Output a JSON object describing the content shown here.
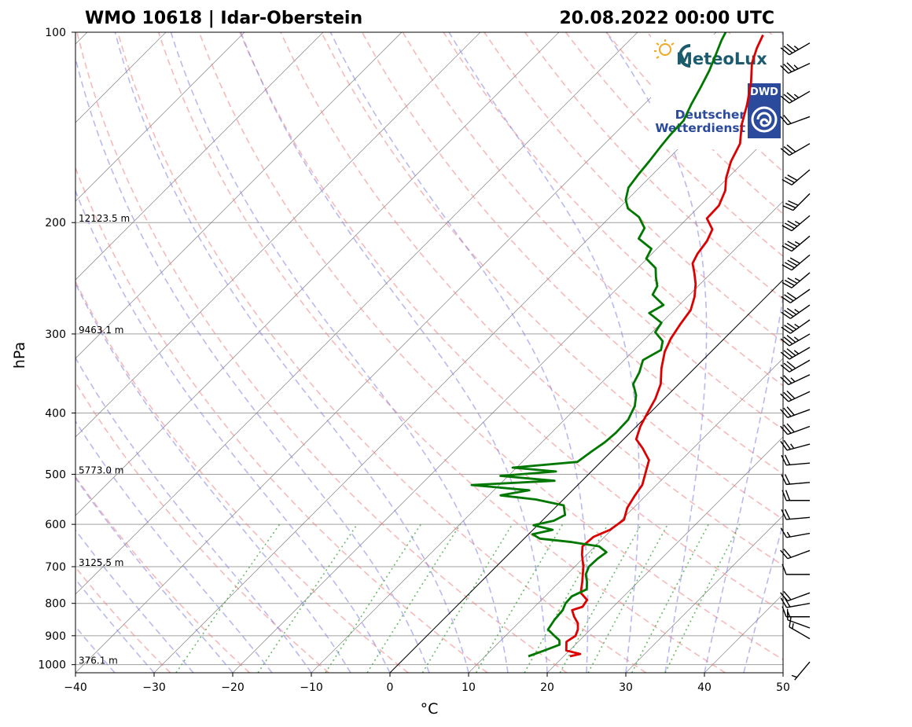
{
  "chart_data": {
    "type": "line",
    "diagram": "skew-T log-p",
    "title_left": "WMO 10618 | Idar-Oberstein",
    "title_right": "20.08.2022 00:00 UTC",
    "xlabel": "°C",
    "ylabel": "hPa",
    "xlim": [
      -40,
      50
    ],
    "ylim": [
      1030,
      100
    ],
    "x_ticks": [
      "−40",
      "−30",
      "−20",
      "−10",
      "0",
      "10",
      "20",
      "30",
      "40",
      "50"
    ],
    "x_tick_values": [
      -40,
      -30,
      -20,
      -10,
      0,
      10,
      20,
      30,
      40,
      50
    ],
    "y_ticks": [
      "100",
      "200",
      "300",
      "400",
      "500",
      "600",
      "700",
      "800",
      "900",
      "1000"
    ],
    "y_tick_values": [
      100,
      200,
      300,
      400,
      500,
      600,
      700,
      800,
      900,
      1000
    ],
    "height_labels": [
      {
        "p": 200,
        "text": "12123.5 m"
      },
      {
        "p": 300,
        "text": "9463.1 m"
      },
      {
        "p": 500,
        "text": "5773.0 m"
      },
      {
        "p": 700,
        "text": "3125.5 m"
      },
      {
        "p": 1000,
        "text": "376.1 m"
      }
    ],
    "grid": true,
    "series": [
      {
        "role": "temperature",
        "color": "#dd0000",
        "points": [
          [
            970,
            20.8
          ],
          [
            962,
            21.8
          ],
          [
            950,
            19.6
          ],
          [
            920,
            18.5
          ],
          [
            900,
            18.9
          ],
          [
            880,
            18.4
          ],
          [
            860,
            17.6
          ],
          [
            840,
            16.3
          ],
          [
            820,
            15.2
          ],
          [
            810,
            16.1
          ],
          [
            790,
            15.8
          ],
          [
            770,
            14.1
          ],
          [
            740,
            12.9
          ],
          [
            700,
            11.1
          ],
          [
            670,
            9.4
          ],
          [
            650,
            8.4
          ],
          [
            628,
            8.6
          ],
          [
            612,
            9.8
          ],
          [
            590,
            10.3
          ],
          [
            565,
            9.2
          ],
          [
            540,
            8.6
          ],
          [
            520,
            8.2
          ],
          [
            500,
            7.2
          ],
          [
            475,
            5.9
          ],
          [
            455,
            3.6
          ],
          [
            440,
            1.6
          ],
          [
            420,
            0.5
          ],
          [
            400,
            -0.3
          ],
          [
            380,
            -1.1
          ],
          [
            360,
            -2.3
          ],
          [
            340,
            -4.2
          ],
          [
            320,
            -5.9
          ],
          [
            305,
            -6.8
          ],
          [
            290,
            -7.4
          ],
          [
            275,
            -7.9
          ],
          [
            262,
            -9.1
          ],
          [
            250,
            -10.6
          ],
          [
            240,
            -12.2
          ],
          [
            232,
            -13.6
          ],
          [
            224,
            -14.2
          ],
          [
            214,
            -14.6
          ],
          [
            205,
            -15.4
          ],
          [
            197,
            -17.5
          ],
          [
            188,
            -17.6
          ],
          [
            178,
            -18.7
          ],
          [
            170,
            -20.2
          ],
          [
            160,
            -21.7
          ],
          [
            150,
            -22.8
          ],
          [
            140,
            -25.0
          ],
          [
            130,
            -26.9
          ],
          [
            120,
            -29.2
          ],
          [
            112,
            -31.5
          ],
          [
            106,
            -32.8
          ],
          [
            101,
            -33.7
          ]
        ]
      },
      {
        "role": "dewpoint",
        "color": "#007700",
        "points": [
          [
            970,
            15.5
          ],
          [
            950,
            16.8
          ],
          [
            930,
            18.0
          ],
          [
            915,
            17.4
          ],
          [
            900,
            16.2
          ],
          [
            880,
            14.6
          ],
          [
            850,
            14.2
          ],
          [
            820,
            14.0
          ],
          [
            800,
            13.5
          ],
          [
            780,
            13.4
          ],
          [
            760,
            14.4
          ],
          [
            740,
            13.5
          ],
          [
            720,
            12.4
          ],
          [
            700,
            11.8
          ],
          [
            680,
            11.9
          ],
          [
            664,
            12.2
          ],
          [
            650,
            10.5
          ],
          [
            640,
            6.5
          ],
          [
            632,
            2.0
          ],
          [
            622,
            0.5
          ],
          [
            612,
            2.5
          ],
          [
            602,
            -0.5
          ],
          [
            592,
            1.5
          ],
          [
            580,
            2.2
          ],
          [
            560,
            0.8
          ],
          [
            548,
            -3.5
          ],
          [
            540,
            -8.5
          ],
          [
            530,
            -5.5
          ],
          [
            520,
            -13.5
          ],
          [
            512,
            -3.5
          ],
          [
            503,
            -11.0
          ],
          [
            495,
            -4.5
          ],
          [
            488,
            -10.5
          ],
          [
            478,
            -3.0
          ],
          [
            460,
            -2.5
          ],
          [
            445,
            -2.0
          ],
          [
            430,
            -1.8
          ],
          [
            410,
            -1.9
          ],
          [
            390,
            -2.8
          ],
          [
            375,
            -4.0
          ],
          [
            360,
            -5.8
          ],
          [
            345,
            -6.5
          ],
          [
            330,
            -7.6
          ],
          [
            318,
            -6.6
          ],
          [
            308,
            -7.5
          ],
          [
            298,
            -9.6
          ],
          [
            288,
            -10.0
          ],
          [
            278,
            -12.8
          ],
          [
            270,
            -12.0
          ],
          [
            260,
            -14.7
          ],
          [
            252,
            -15.2
          ],
          [
            244,
            -16.5
          ],
          [
            236,
            -17.7
          ],
          [
            228,
            -20.1
          ],
          [
            220,
            -20.7
          ],
          [
            212,
            -23.6
          ],
          [
            204,
            -24.2
          ],
          [
            196,
            -26.3
          ],
          [
            190,
            -28.8
          ],
          [
            184,
            -30.2
          ],
          [
            176,
            -31.4
          ],
          [
            168,
            -31.8
          ],
          [
            160,
            -32.1
          ],
          [
            152,
            -32.5
          ],
          [
            145,
            -32.8
          ],
          [
            138,
            -32.9
          ],
          [
            130,
            -34.0
          ],
          [
            122,
            -35.0
          ],
          [
            115,
            -36.0
          ],
          [
            108,
            -37.3
          ],
          [
            103,
            -38.3
          ],
          [
            100,
            -38.8
          ]
        ]
      }
    ],
    "wind_barbs": [
      {
        "p": 990,
        "dir": 220,
        "speed": 5
      },
      {
        "p": 910,
        "dir": 300,
        "speed": 15
      },
      {
        "p": 875,
        "dir": 290,
        "speed": 10
      },
      {
        "p": 840,
        "dir": 270,
        "speed": 15
      },
      {
        "p": 800,
        "dir": 260,
        "speed": 20
      },
      {
        "p": 770,
        "dir": 250,
        "speed": 20
      },
      {
        "p": 720,
        "dir": 270,
        "speed": 10
      },
      {
        "p": 660,
        "dir": 250,
        "speed": 20
      },
      {
        "p": 620,
        "dir": 260,
        "speed": 15
      },
      {
        "p": 585,
        "dir": 265,
        "speed": 20
      },
      {
        "p": 550,
        "dir": 270,
        "speed": 20
      },
      {
        "p": 515,
        "dir": 265,
        "speed": 20
      },
      {
        "p": 480,
        "dir": 265,
        "speed": 20
      },
      {
        "p": 448,
        "dir": 255,
        "speed": 25
      },
      {
        "p": 420,
        "dir": 250,
        "speed": 30
      },
      {
        "p": 395,
        "dir": 250,
        "speed": 30
      },
      {
        "p": 370,
        "dir": 245,
        "speed": 30
      },
      {
        "p": 348,
        "dir": 245,
        "speed": 25
      },
      {
        "p": 330,
        "dir": 240,
        "speed": 30
      },
      {
        "p": 315,
        "dir": 240,
        "speed": 35
      },
      {
        "p": 300,
        "dir": 240,
        "speed": 35
      },
      {
        "p": 285,
        "dir": 235,
        "speed": 35
      },
      {
        "p": 270,
        "dir": 235,
        "speed": 35
      },
      {
        "p": 255,
        "dir": 235,
        "speed": 30
      },
      {
        "p": 240,
        "dir": 230,
        "speed": 35
      },
      {
        "p": 225,
        "dir": 230,
        "speed": 40
      },
      {
        "p": 210,
        "dir": 230,
        "speed": 35
      },
      {
        "p": 195,
        "dir": 230,
        "speed": 35
      },
      {
        "p": 180,
        "dir": 225,
        "speed": 30
      },
      {
        "p": 165,
        "dir": 230,
        "speed": 30
      },
      {
        "p": 150,
        "dir": 240,
        "speed": 30
      },
      {
        "p": 136,
        "dir": 250,
        "speed": 20
      },
      {
        "p": 124,
        "dir": 240,
        "speed": 35
      },
      {
        "p": 112,
        "dir": 245,
        "speed": 35
      },
      {
        "p": 104,
        "dir": 240,
        "speed": 35
      }
    ]
  },
  "logos": {
    "meteolux": {
      "text": "MeteoLux",
      "color": "#1c5b6e",
      "sun_color": "#f1a823"
    },
    "dwd": {
      "badge": "DWD",
      "line1": "Deutscher",
      "line2": "Wetterdienst",
      "color": "#2b4a9b"
    }
  },
  "colors": {
    "temperature": "#dd0000",
    "dewpoint": "#007700",
    "dry_adiabat": "#f08080",
    "moist_adiabat": "#8080e8",
    "mixing_ratio": "#44aa44",
    "isotherm": "#707070",
    "isobar": "#a0a0a0"
  }
}
